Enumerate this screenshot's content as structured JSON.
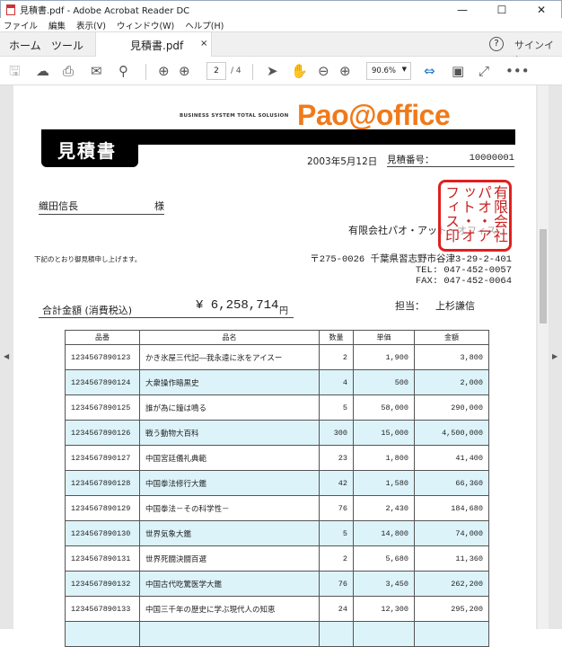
{
  "window": {
    "title": "見積書.pdf - Adobe Acrobat Reader DC",
    "minimize": "—",
    "maximize": "☐",
    "close": "✕"
  },
  "menu": [
    "ファイル",
    "編集",
    "表示(V)",
    "ウィンドウ(W)",
    "ヘルプ(H)"
  ],
  "tabs": {
    "home": "ホーム",
    "tools": "ツール",
    "document": "見積書.pdf",
    "close": "×",
    "help": "?",
    "signin": "サインイン"
  },
  "toolbar": {
    "page_current": "2",
    "page_total": "/ 4",
    "zoom": "90.6%"
  },
  "doc": {
    "tagline": "BUSINESS SYSTEM TOTAL SOLUSION",
    "logo": "Pao@office",
    "title": "見積書",
    "date": "2003年5月12日",
    "estimate_no_label": "見積番号：",
    "estimate_no": "10000001",
    "customer": "織田信長",
    "honorific": "様",
    "company": "有限会社パオ・アット・オフィス",
    "stamp": "有限会社パオ・アット・オフィス印",
    "intro": "下記のとおり御見積申し上げます。",
    "address": "〒275-0026 千葉県習志野市谷津3-29-2-401",
    "tel": "TEL: 047-452-0057",
    "fax": "FAX: 047-452-0064",
    "total_label": "合計金額 (消費税込)",
    "total": "¥ 6,258,714",
    "yen": "円",
    "staff_label": "担当：",
    "staff": "上杉謙信",
    "columns": [
      "品番",
      "品名",
      "数量",
      "単価",
      "金額"
    ],
    "rows": [
      [
        "1234567890123",
        "かき氷屋三代記―我永遠に氷をアイスー",
        "2",
        "1,900",
        "3,800"
      ],
      [
        "1234567890124",
        "大衆操作暗黒史",
        "4",
        "500",
        "2,000"
      ],
      [
        "1234567890125",
        "誰が為に鐘は鳴る",
        "5",
        "58,000",
        "290,000"
      ],
      [
        "1234567890126",
        "戦う動物大百科",
        "300",
        "15,000",
        "4,500,000"
      ],
      [
        "1234567890127",
        "中国宮廷儀礼典範",
        "23",
        "1,800",
        "41,400"
      ],
      [
        "1234567890128",
        "中国拳法修行大鑑",
        "42",
        "1,580",
        "66,360"
      ],
      [
        "1234567890129",
        "中国拳法－その科学性－",
        "76",
        "2,430",
        "184,680"
      ],
      [
        "1234567890130",
        "世界気象大鑑",
        "5",
        "14,800",
        "74,000"
      ],
      [
        "1234567890131",
        "世界死闘決闘百選",
        "2",
        "5,680",
        "11,360"
      ],
      [
        "1234567890132",
        "中国古代吃驚医学大鑑",
        "76",
        "3,450",
        "262,200"
      ],
      [
        "1234567890133",
        "中国三千年の歴史に学ぶ現代人の知恵",
        "24",
        "12,300",
        "295,200"
      ]
    ]
  }
}
